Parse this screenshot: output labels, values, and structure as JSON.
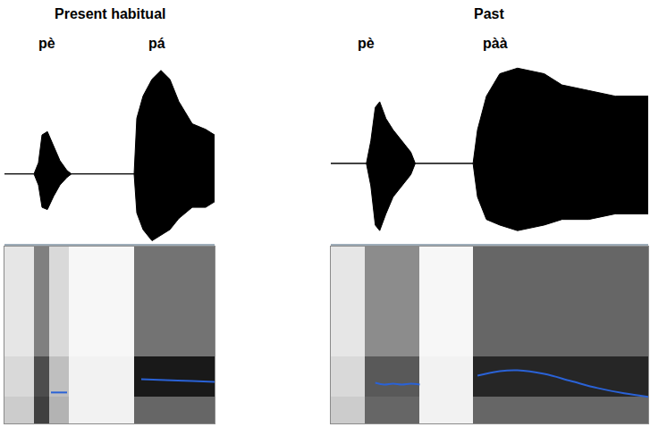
{
  "chart_data": [
    {
      "type": "line",
      "title": "Present habitual",
      "tick_labels": false,
      "xlim": [
        0,
        235
      ],
      "syllables": [
        {
          "text": "pè",
          "x": 47
        },
        {
          "text": "pá",
          "x": 170
        }
      ],
      "waveform": {
        "x": [
          0,
          33,
          38,
          42,
          48,
          55,
          62,
          70,
          75,
          145,
          148,
          155,
          165,
          175,
          185,
          195,
          210,
          225,
          235
        ],
        "upper": [
          0,
          0,
          0.1,
          0.35,
          0.38,
          0.25,
          0.12,
          0.03,
          0,
          0,
          0.5,
          0.7,
          0.85,
          0.93,
          0.85,
          0.65,
          0.45,
          0.4,
          0.35
        ],
        "lower": [
          0,
          0,
          -0.1,
          -0.3,
          -0.32,
          -0.2,
          -0.1,
          -0.03,
          0,
          0,
          -0.35,
          -0.5,
          -0.6,
          -0.55,
          -0.5,
          -0.4,
          -0.3,
          -0.3,
          -0.25
        ],
        "ylim": [
          -0.62,
          1
        ],
        "color": "#000000"
      },
      "spectrogram": {
        "x": [
          0,
          33,
          50,
          72,
          145,
          235
        ],
        "y": [
          0,
          15,
          38,
          100
        ],
        "z": [
          [
            0.2,
            0.75,
            0.3,
            0.05,
            0.6
          ],
          [
            0.15,
            0.7,
            0.25,
            0.05,
            0.9
          ],
          [
            0.1,
            0.5,
            0.15,
            0.03,
            0.55
          ]
        ],
        "zlim": [
          0,
          1
        ]
      },
      "pitch": {
        "x": [
          52,
          61,
          70,
          110,
          153,
          180,
          210,
          235
        ],
        "values": [
          17.5,
          17.5,
          17.5,
          null,
          25,
          24.5,
          24,
          23.5
        ],
        "color": "#2a62d6"
      }
    },
    {
      "type": "line",
      "title": "Past",
      "tick_labels": false,
      "xlim": [
        0,
        357
      ],
      "syllables": [
        {
          "text": "pè",
          "x": 40
        },
        {
          "text": "pàà",
          "x": 185
        }
      ],
      "waveform": {
        "x": [
          0,
          40,
          45,
          50,
          55,
          62,
          70,
          80,
          90,
          95,
          160,
          165,
          175,
          190,
          210,
          240,
          260,
          290,
          320,
          357
        ],
        "upper": [
          0,
          0,
          0.2,
          0.5,
          0.55,
          0.4,
          0.3,
          0.2,
          0.1,
          0,
          0,
          0.3,
          0.6,
          0.8,
          0.85,
          0.8,
          0.7,
          0.65,
          0.6,
          0.6
        ],
        "lower": [
          0,
          0,
          -0.2,
          -0.55,
          -0.6,
          -0.45,
          -0.3,
          -0.2,
          -0.1,
          0,
          0,
          -0.3,
          -0.5,
          -0.55,
          -0.6,
          -0.55,
          -0.5,
          -0.5,
          -0.45,
          -0.45
        ],
        "ylim": [
          -0.71,
          0.9
        ],
        "color": "#000000"
      },
      "spectrogram": {
        "x": [
          0,
          38,
          100,
          160,
          357
        ],
        "y": [
          0,
          15,
          38,
          100
        ],
        "z": [
          [
            0.2,
            0.6,
            0.05,
            0.6
          ],
          [
            0.15,
            0.65,
            0.05,
            0.85
          ],
          [
            0.1,
            0.45,
            0.03,
            0.6
          ]
        ],
        "zlim": [
          0,
          1
        ]
      },
      "pitch": {
        "x": [
          50,
          60,
          70,
          80,
          90,
          100,
          130,
          165,
          190,
          210,
          240,
          270,
          300,
          330,
          357
        ],
        "values": [
          23,
          22,
          22.5,
          22,
          22.5,
          22,
          null,
          27,
          29.5,
          30,
          28,
          24,
          20,
          17,
          15
        ],
        "color": "#2a62d6"
      }
    }
  ]
}
